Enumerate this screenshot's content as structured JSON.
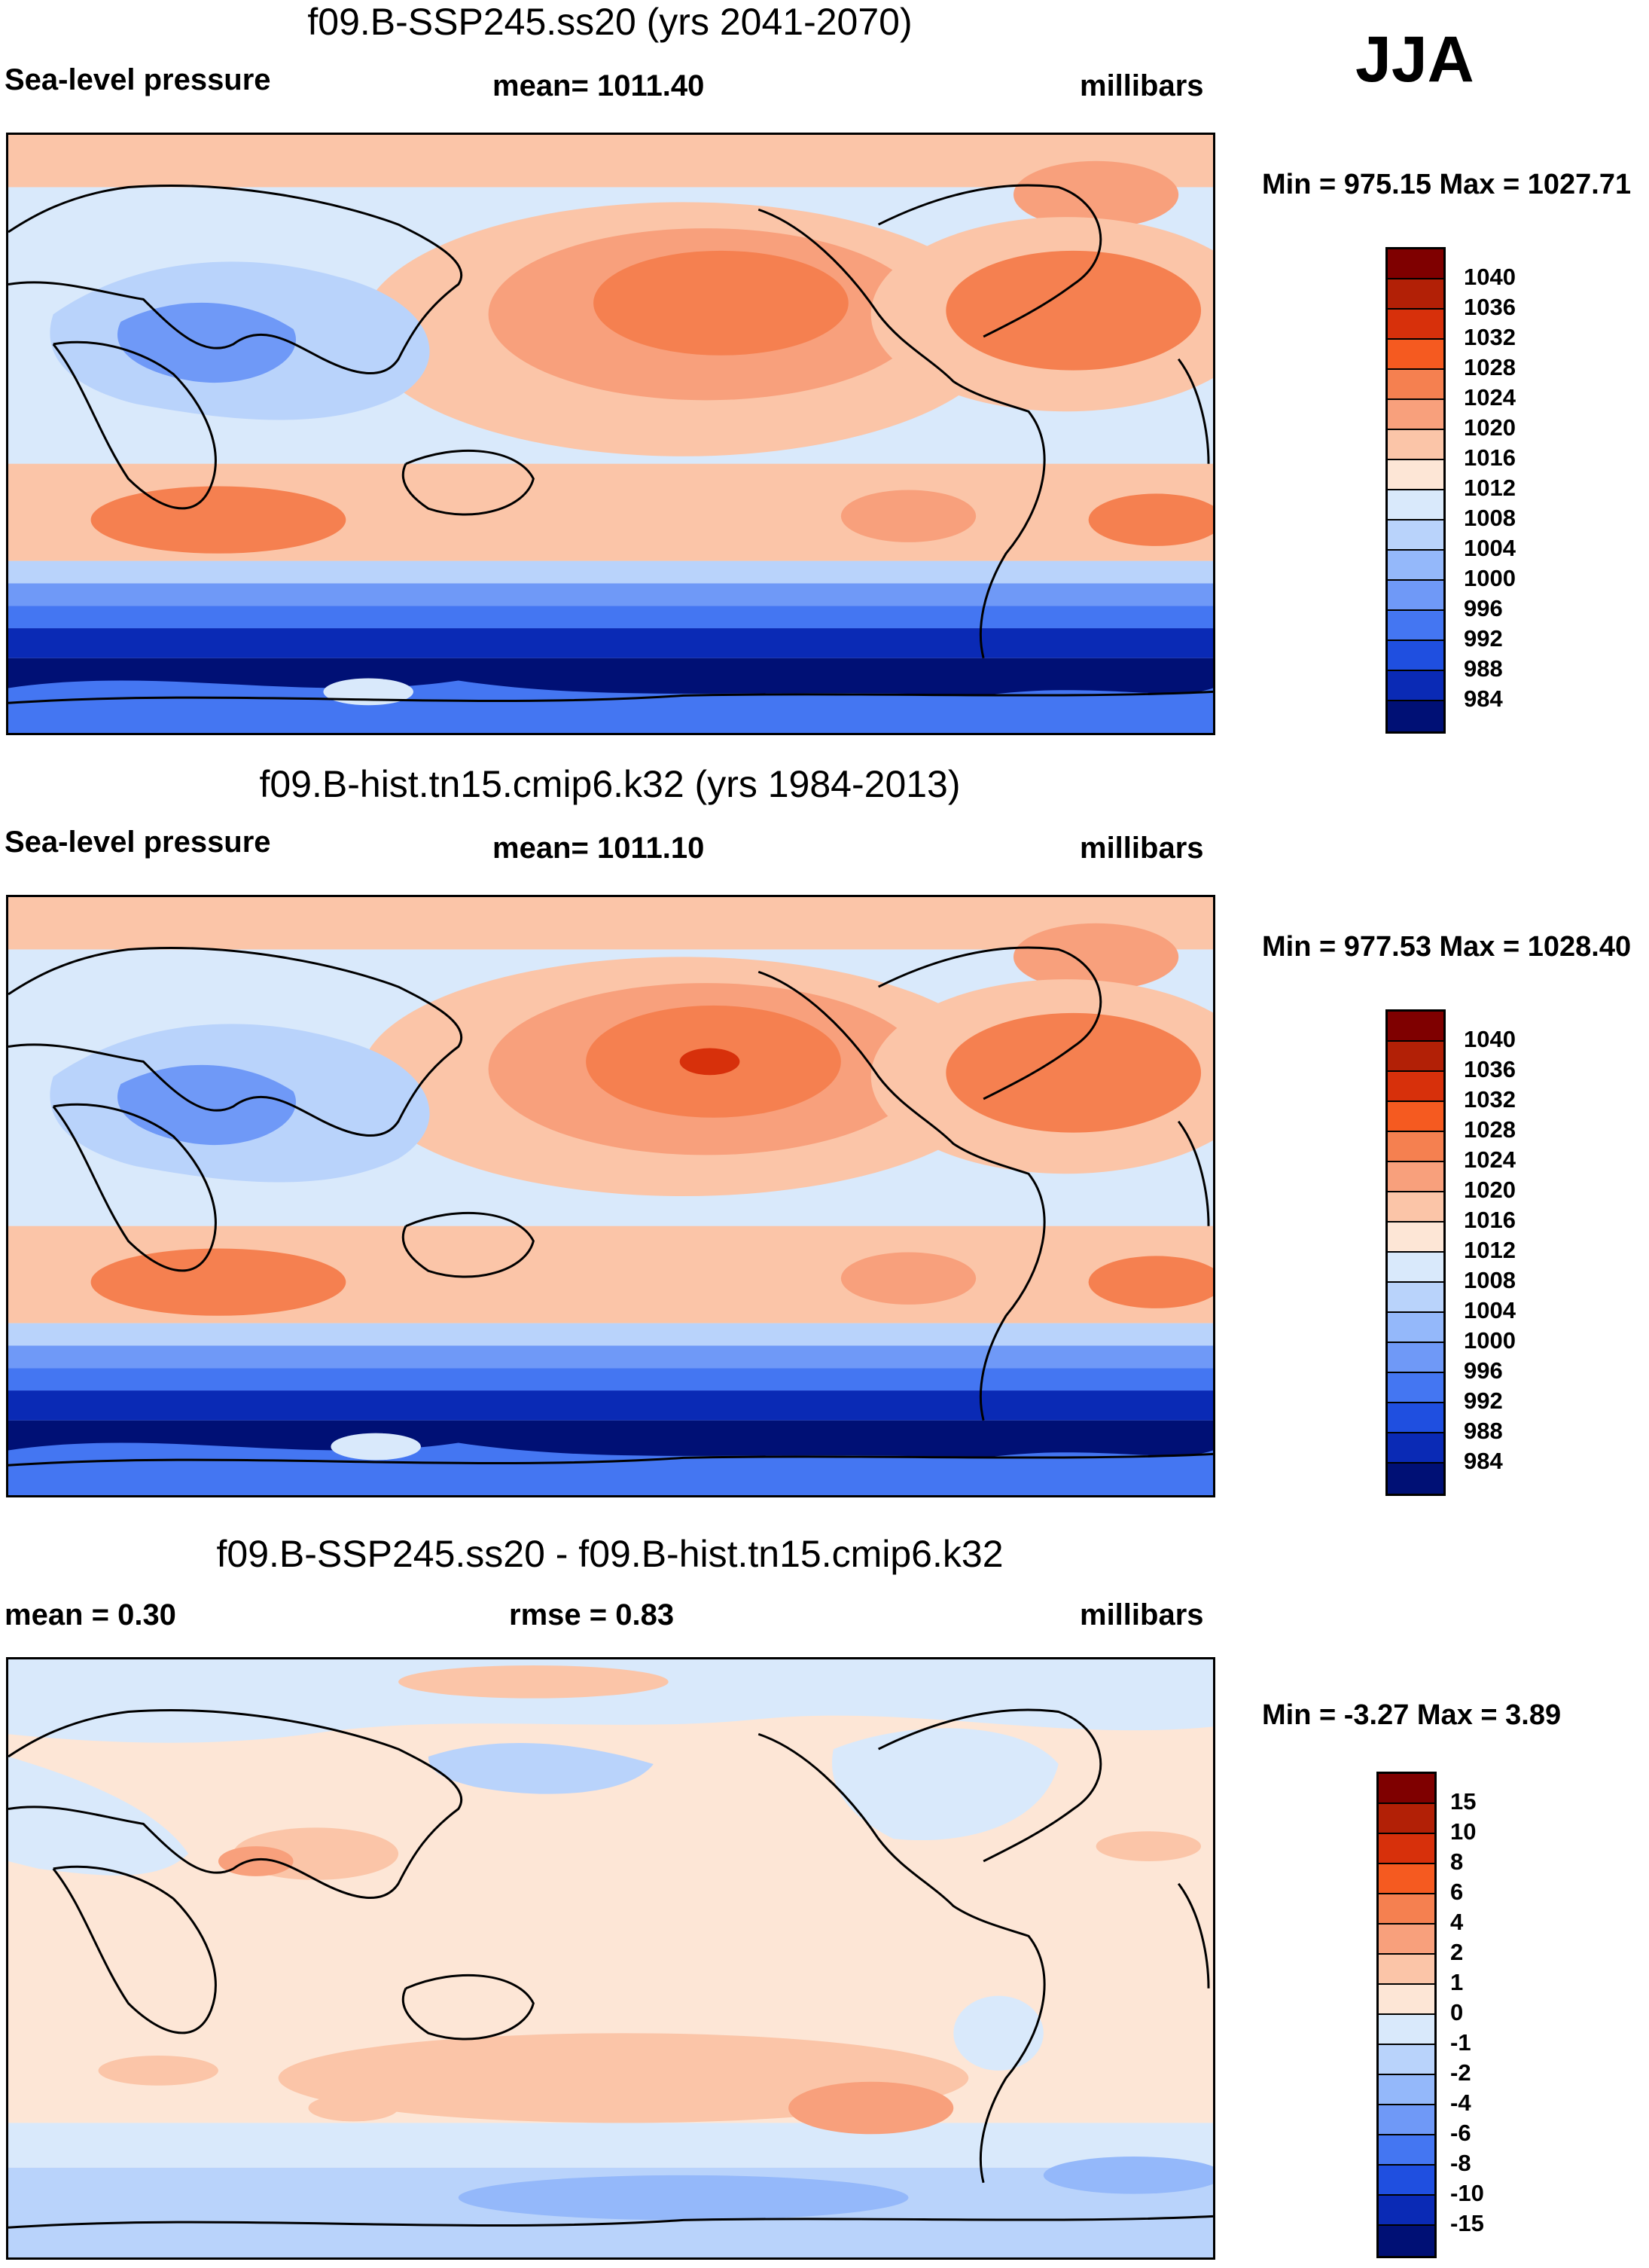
{
  "season": "JJA",
  "panels": [
    {
      "title": "f09.B-SSP245.ss20 (yrs 2041-2070)",
      "left_label": "Sea-level pressure",
      "center_label": "mean= 1011.40",
      "right_label": "millibars",
      "minmax": "Min = 975.15 Max = 1027.71",
      "colorbar": {
        "labels": [
          "1040",
          "1036",
          "1032",
          "1028",
          "1024",
          "1020",
          "1016",
          "1012",
          "1008",
          "1004",
          "1000",
          "996",
          "992",
          "988",
          "984"
        ],
        "colors": [
          "#7f0000",
          "#b22006",
          "#d7300b",
          "#f55a20",
          "#f58050",
          "#f8a07c",
          "#fbc5a8",
          "#fde6d6",
          "#d9e9fb",
          "#b9d3fb",
          "#94b8fa",
          "#6f99f7",
          "#4476f2",
          "#1f4fe0",
          "#0a2ab5",
          "#001075"
        ]
      }
    },
    {
      "title": "f09.B-hist.tn15.cmip6.k32 (yrs 1984-2013)",
      "left_label": "Sea-level pressure",
      "center_label": "mean= 1011.10",
      "right_label": "millibars",
      "minmax": "Min = 977.53 Max = 1028.40",
      "colorbar": {
        "labels": [
          "1040",
          "1036",
          "1032",
          "1028",
          "1024",
          "1020",
          "1016",
          "1012",
          "1008",
          "1004",
          "1000",
          "996",
          "992",
          "988",
          "984"
        ],
        "colors": [
          "#7f0000",
          "#b22006",
          "#d7300b",
          "#f55a20",
          "#f58050",
          "#f8a07c",
          "#fbc5a8",
          "#fde6d6",
          "#d9e9fb",
          "#b9d3fb",
          "#94b8fa",
          "#6f99f7",
          "#4476f2",
          "#1f4fe0",
          "#0a2ab5",
          "#001075"
        ]
      }
    },
    {
      "title": "f09.B-SSP245.ss20 - f09.B-hist.tn15.cmip6.k32",
      "left_label": "mean =   0.30",
      "center_label": "rmse =   0.83",
      "right_label": "millibars",
      "minmax": "Min =  -3.27 Max =   3.89",
      "colorbar": {
        "labels": [
          "15",
          "10",
          "8",
          "6",
          "4",
          "2",
          "1",
          "0",
          "-1",
          "-2",
          "-4",
          "-6",
          "-8",
          "-10",
          "-15"
        ],
        "colors": [
          "#7f0000",
          "#b22006",
          "#d7300b",
          "#f55a20",
          "#f58050",
          "#f8a07c",
          "#fbc5a8",
          "#fde6d6",
          "#d9e9fb",
          "#b9d3fb",
          "#94b8fa",
          "#6f99f7",
          "#4476f2",
          "#1f4fe0",
          "#0a2ab5",
          "#001075"
        ]
      }
    }
  ],
  "map_colors": {
    "ocean_neutral": "#d9e9fb",
    "high_light": "#fbc5a8",
    "high_mid": "#f8a07c",
    "high_strong": "#f58050",
    "high_core": "#f55a20",
    "low_light": "#b9d3fb",
    "low_mid": "#94b8fa",
    "low_strong": "#4476f2",
    "low_deep": "#0a2ab5",
    "low_core": "#001075",
    "coast": "#000000"
  }
}
